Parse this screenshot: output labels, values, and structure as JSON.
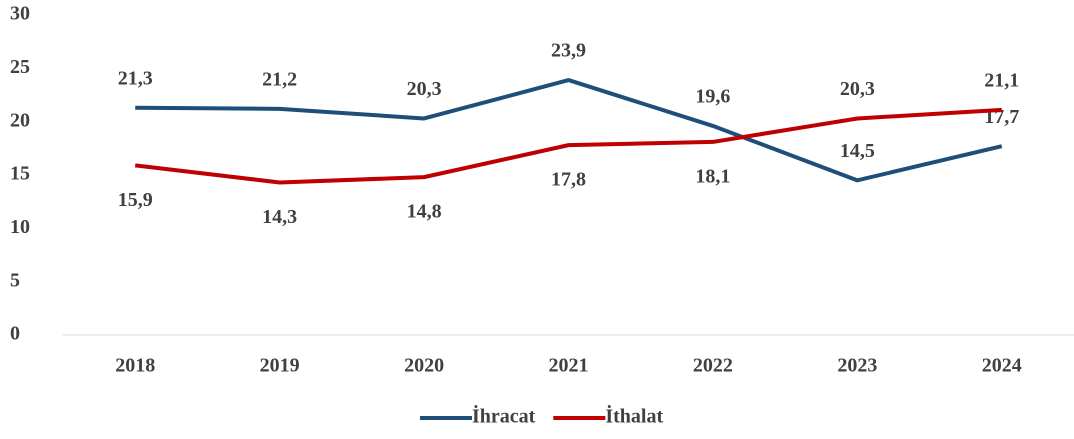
{
  "chart_data": {
    "type": "line",
    "categories": [
      "2018",
      "2019",
      "2020",
      "2021",
      "2022",
      "2023",
      "2024"
    ],
    "series": [
      {
        "name": "İhracat",
        "color": "#1f4e79",
        "values": [
          21.3,
          21.2,
          20.3,
          23.9,
          19.6,
          14.5,
          17.7
        ],
        "value_labels": [
          "21,3",
          "21,2",
          "20,3",
          "23,9",
          "19,6",
          "14,5",
          "17,7"
        ]
      },
      {
        "name": "İthalat",
        "color": "#c00000",
        "values": [
          15.9,
          14.3,
          14.8,
          17.8,
          18.1,
          20.3,
          21.1
        ],
        "value_labels": [
          "15,9",
          "14,3",
          "14,8",
          "17,8",
          "18,1",
          "20,3",
          "21,1"
        ]
      }
    ],
    "ylim": [
      0,
      30
    ],
    "yticks": [
      0,
      5,
      10,
      15,
      20,
      25,
      30
    ],
    "grid": false,
    "legend": "bottom"
  }
}
